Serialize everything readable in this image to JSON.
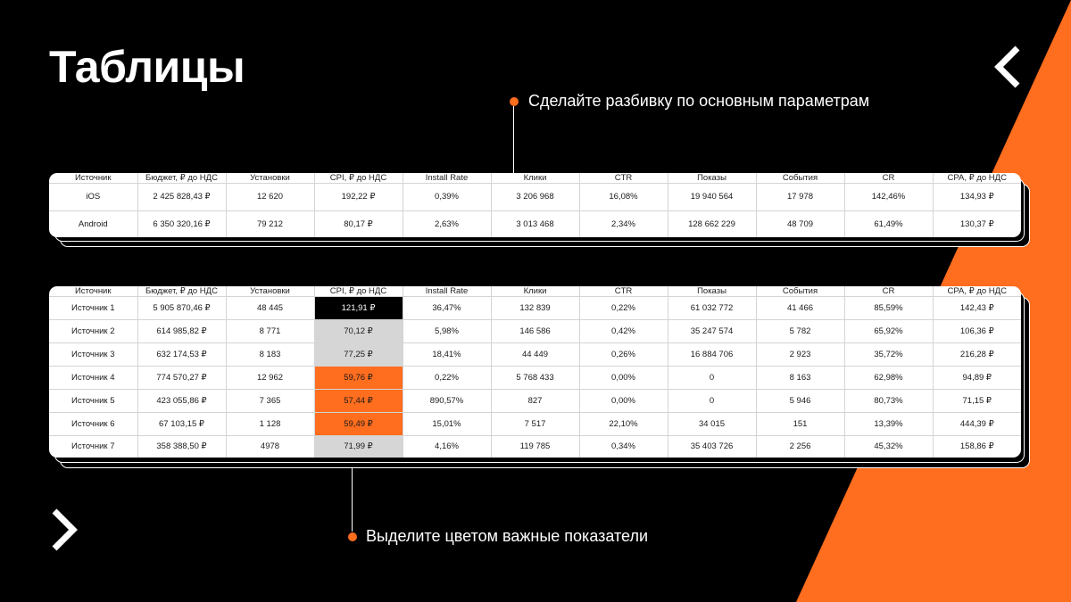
{
  "page": {
    "title": "Таблицы",
    "colors": {
      "accent": "#FF6D1E",
      "background": "#000000",
      "highlight_gray": "#d6d6d6"
    }
  },
  "nav": {
    "prev_icon": "chevron-left-icon",
    "next_icon": "chevron-right-icon"
  },
  "callouts": {
    "breakdown": "Сделайте разбивку по основным параметрам",
    "color": "Выделите цветом важные показатели"
  },
  "table1": {
    "headers": [
      "Источник",
      "Бюджет,  ₽ до НДС",
      "Установки",
      "CPI, ₽ до НДС",
      "Install Rate",
      "Клики",
      "CTR",
      "Показы",
      "События",
      "CR",
      "CPA, ₽ до НДС"
    ],
    "rows": [
      [
        "iOS",
        "2 425 828,43 ₽",
        "12 620",
        "192,22 ₽",
        "0,39%",
        "3 206 968",
        "16,08%",
        "19 940 564",
        "17 978",
        "142,46%",
        "134,93 ₽"
      ],
      [
        "Android",
        "6 350 320,16 ₽",
        "79 212",
        "80,17 ₽",
        "2,63%",
        "3 013 468",
        "2,34%",
        "128 662 229",
        "48 709",
        "61,49%",
        "130,37 ₽"
      ]
    ]
  },
  "table2": {
    "headers": [
      "Источник",
      "Бюджет,  ₽ до НДС",
      "Установки",
      "CPI, ₽ до НДС",
      "Install Rate",
      "Клики",
      "CTR",
      "Показы",
      "События",
      "CR",
      "CPA, ₽ до НДС"
    ],
    "rows": [
      [
        "Источник 1",
        "5 905 870,46 ₽",
        "48 445",
        "121,91 ₽",
        "36,47%",
        "132 839",
        "0,22%",
        "61 032 772",
        "41 466",
        "85,59%",
        "142,43 ₽"
      ],
      [
        "Источник 2",
        "614 985,82 ₽",
        "8 771",
        "70,12 ₽",
        "5,98%",
        "146 586",
        "0,42%",
        "35 247 574",
        "5 782",
        "65,92%",
        "106,36 ₽"
      ],
      [
        "Источник 3",
        "632 174,53 ₽",
        "8 183",
        "77,25 ₽",
        "18,41%",
        "44 449",
        "0,26%",
        "16 884 706",
        "2 923",
        "35,72%",
        "216,28 ₽"
      ],
      [
        "Источник 4",
        "774 570,27 ₽",
        "12 962",
        "59,76 ₽",
        "0,22%",
        "5 768 433",
        "0,00%",
        "0",
        "8 163",
        "62,98%",
        "94,89 ₽"
      ],
      [
        "Источник 5",
        "423 055,86 ₽",
        "7 365",
        "57,44 ₽",
        "890,57%",
        "827",
        "0,00%",
        "0",
        "5 946",
        "80,73%",
        "71,15 ₽"
      ],
      [
        "Источник 6",
        "67 103,15 ₽",
        "1 128",
        "59,49 ₽",
        "15,01%",
        "7 517",
        "22,10%",
        "34 015",
        "151",
        "13,39%",
        "444,39 ₽"
      ],
      [
        "Источник 7",
        "358 388,50 ₽",
        "4978",
        "71,99 ₽",
        "4,16%",
        "119 785",
        "0,34%",
        "35 403 726",
        "2 256",
        "45,32%",
        "158,86 ₽"
      ]
    ],
    "cpi_highlights": [
      "black",
      "gray",
      "gray",
      "orange",
      "orange",
      "orange",
      "gray"
    ]
  }
}
